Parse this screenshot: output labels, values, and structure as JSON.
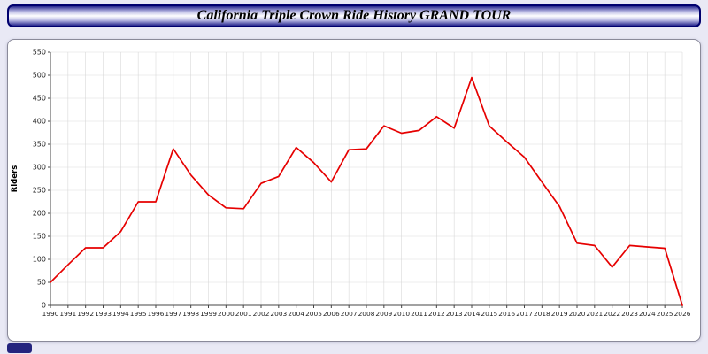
{
  "title": "California Triple Crown Ride History GRAND TOUR",
  "chart_data": {
    "type": "line",
    "title": "California Triple Crown Ride History GRAND TOUR",
    "xlabel": "",
    "ylabel": "Riders",
    "ylim": [
      0,
      550
    ],
    "ytick_step": 50,
    "grid": true,
    "legend_position": "none",
    "x": [
      1990,
      1991,
      1992,
      1993,
      1994,
      1995,
      1996,
      1997,
      1998,
      1999,
      2000,
      2001,
      2002,
      2003,
      2004,
      2005,
      2006,
      2007,
      2008,
      2009,
      2010,
      2011,
      2012,
      2013,
      2014,
      2015,
      2016,
      2017,
      2018,
      2019,
      2020,
      2021,
      2022,
      2023,
      2024,
      2025,
      2026
    ],
    "series": [
      {
        "name": "Riders",
        "color": "#e60000",
        "values": [
          50,
          88,
          125,
          125,
          160,
          225,
          225,
          340,
          283,
          240,
          212,
          210,
          265,
          280,
          343,
          310,
          268,
          338,
          340,
          390,
          374,
          380,
          410,
          385,
          495,
          390,
          355,
          322,
          268,
          215,
          135,
          130,
          83,
          130,
          127,
          124,
          0
        ]
      }
    ]
  },
  "axis_style": {
    "grid_color": "#d9d9d9",
    "axis_color": "#444444",
    "tick_label_color": "#222222"
  }
}
